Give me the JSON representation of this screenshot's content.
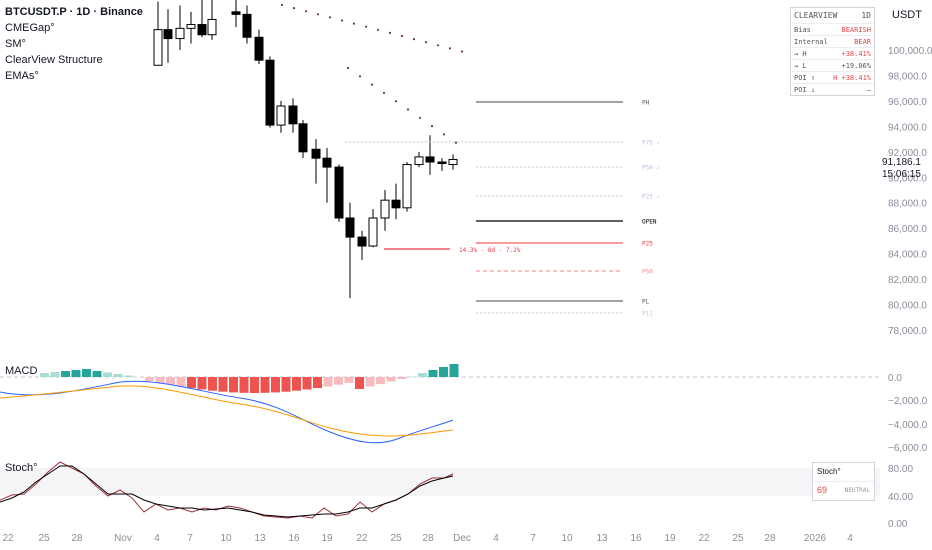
{
  "legend": {
    "symbol": "BTCUSDT.P · 1D · Binance",
    "indicators": [
      "CMEGap°",
      "SM°",
      "ClearView Structure",
      "EMAs°"
    ]
  },
  "currency": "USDT",
  "clearview_table": {
    "title": "CLEARVIEW",
    "timeframe": "1D",
    "rows": [
      {
        "key": "Bias",
        "value": "BEARISH"
      },
      {
        "key": "Internal",
        "value": "BEAR"
      },
      {
        "key": "→ H",
        "value": "+38.41%"
      },
      {
        "key": "→ L",
        "value": "+19.06%"
      },
      {
        "key": "POI ↑",
        "value": "H +38.41%"
      },
      {
        "key": "POI ↓",
        "value": "–"
      }
    ]
  },
  "current_price": {
    "price": "91,186.1",
    "countdown": "15:06:15"
  },
  "price_axis": [
    "100,000.0",
    "98,000.0",
    "96,000.0",
    "94,000.0",
    "92,000.0",
    "90,000.0",
    "88,000.0",
    "86,000.0",
    "84,000.0",
    "82,000.0",
    "80,000.0",
    "78,000.0"
  ],
  "level_labels": {
    "ph": "PH",
    "p75": "P75 ✓",
    "p50": "P50 ✓",
    "p25": "P25 ✓",
    "open": "OPEN",
    "p25_red": "P25",
    "p50_red": "P50",
    "pl": "PL",
    "p11": "P11",
    "stat": "14.3% · 8d · 7.2%"
  },
  "macd": {
    "label": "MACD",
    "axis": [
      "0.0",
      "−2,000.0",
      "−4,000.0",
      "−6,000.0"
    ]
  },
  "stoch": {
    "label": "Stoch°",
    "axis": [
      "80.00",
      "40.00",
      "0.00"
    ],
    "box_title": "Stoch°",
    "value": "69",
    "state": "NEUTRAL"
  },
  "time_axis": [
    "22",
    "25",
    "28",
    "Nov",
    "4",
    "7",
    "10",
    "13",
    "16",
    "19",
    "22",
    "25",
    "28",
    "Dec",
    "4",
    "7",
    "10",
    "13",
    "16",
    "19",
    "22",
    "25",
    "28",
    "2026",
    "4"
  ],
  "colors": {
    "bull_body": "#ffffff",
    "bear_body": "#000000",
    "macd_up": "#26a69a",
    "macd_down": "#ef5350",
    "red_level": "#f23645"
  }
}
